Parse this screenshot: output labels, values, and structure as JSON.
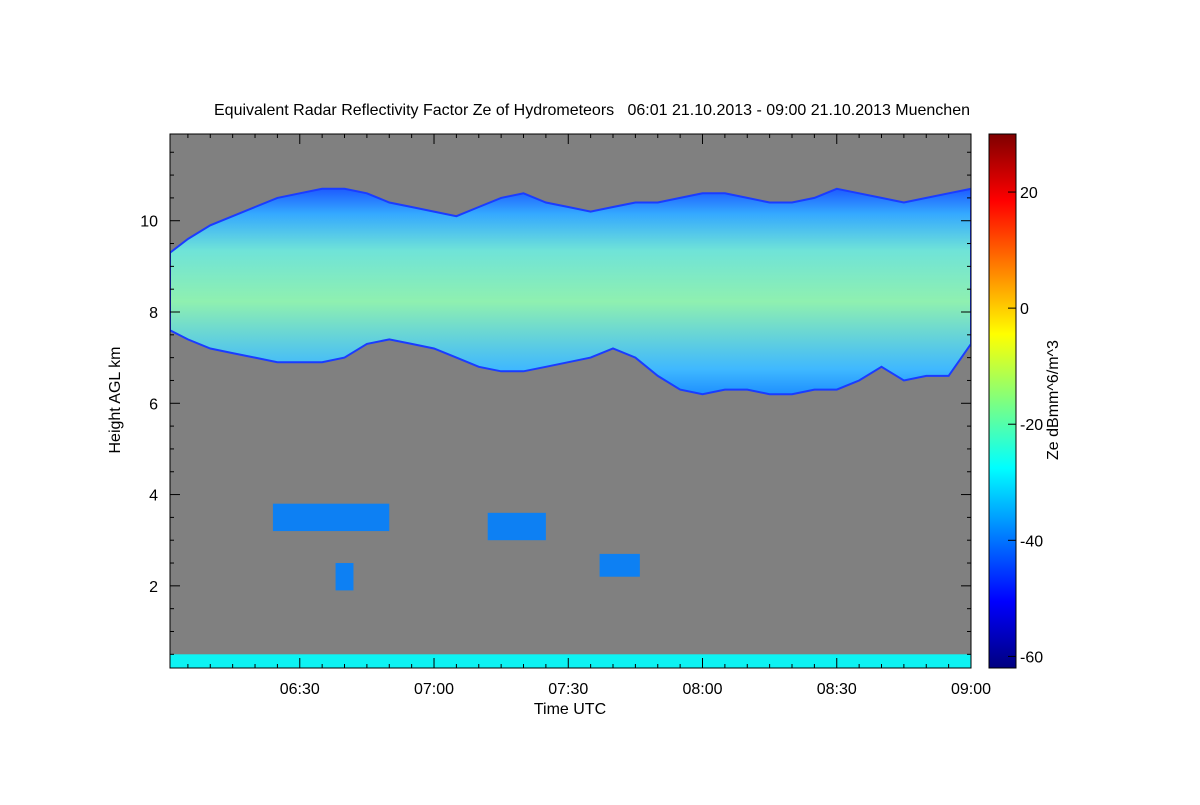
{
  "chart_data": {
    "type": "heatmap",
    "title": "Equivalent Radar Reflectivity Factor Ze of Hydrometeors   06:01 21.10.2013 - 09:00 21.10.2013 Muenchen",
    "xlabel": "Time UTC",
    "ylabel": "Height AGL km",
    "colorbar_label": "Ze dBmm^6/m^3",
    "x_ticks": [
      "06:30",
      "07:00",
      "07:30",
      "08:00",
      "08:30",
      "09:00"
    ],
    "x_tick_minutes": [
      30,
      60,
      90,
      120,
      150,
      180
    ],
    "xlim_minutes": [
      1,
      180
    ],
    "y_ticks": [
      2,
      4,
      6,
      8,
      10
    ],
    "ylim": [
      0.2,
      11.9
    ],
    "colorbar_ticks": [
      20,
      0,
      -20,
      -40,
      -60
    ],
    "colorbar_range": [
      -62,
      30
    ],
    "colormap": [
      "#00007f",
      "#0000ff",
      "#007fff",
      "#00ffff",
      "#7fff7f",
      "#ffff00",
      "#ff7f00",
      "#ff0000",
      "#7f0000"
    ],
    "background_color": "#808080",
    "regions": [
      {
        "name": "upper-cloud-layer",
        "t": [
          1,
          5,
          10,
          15,
          20,
          25,
          30,
          35,
          40,
          45,
          50,
          55,
          60,
          65,
          70,
          75,
          80,
          85,
          90,
          95,
          100,
          105,
          110,
          115,
          120,
          125,
          130,
          135,
          140,
          145,
          150,
          155,
          160,
          165,
          170,
          175,
          180
        ],
        "base_km": [
          7.6,
          7.4,
          7.2,
          7.1,
          7.0,
          6.9,
          6.9,
          6.9,
          7.0,
          7.3,
          7.4,
          7.3,
          7.2,
          7.0,
          6.8,
          6.7,
          6.7,
          6.8,
          6.9,
          7.0,
          7.2,
          7.0,
          6.6,
          6.3,
          6.2,
          6.3,
          6.3,
          6.2,
          6.2,
          6.3,
          6.3,
          6.5,
          6.8,
          6.5,
          6.6,
          6.6,
          7.3
        ],
        "top_km": [
          9.3,
          9.6,
          9.9,
          10.1,
          10.3,
          10.5,
          10.6,
          10.7,
          10.7,
          10.6,
          10.4,
          10.3,
          10.2,
          10.1,
          10.3,
          10.5,
          10.6,
          10.4,
          10.3,
          10.2,
          10.3,
          10.4,
          10.4,
          10.5,
          10.6,
          10.6,
          10.5,
          10.4,
          10.4,
          10.5,
          10.7,
          10.6,
          10.5,
          10.4,
          10.5,
          10.6,
          10.7
        ],
        "core_ze": -20
      },
      {
        "name": "mid-level-echo-1",
        "t_start": 24,
        "t_end": 50,
        "base_km": 3.2,
        "top_km": 3.8,
        "ze": -40
      },
      {
        "name": "mid-level-echo-2",
        "t_start": 72,
        "t_end": 85,
        "base_km": 3.0,
        "top_km": 3.6,
        "ze": -38
      },
      {
        "name": "low-echo-1",
        "t_start": 38,
        "t_end": 42,
        "base_km": 1.9,
        "top_km": 2.5,
        "ze": -40
      },
      {
        "name": "low-echo-2",
        "t_start": 97,
        "t_end": 106,
        "base_km": 2.2,
        "top_km": 2.7,
        "ze": -40
      },
      {
        "name": "surface-clutter",
        "t_start": 1,
        "t_end": 180,
        "base_km": 0.2,
        "top_km": 0.5,
        "ze": -30
      }
    ]
  }
}
